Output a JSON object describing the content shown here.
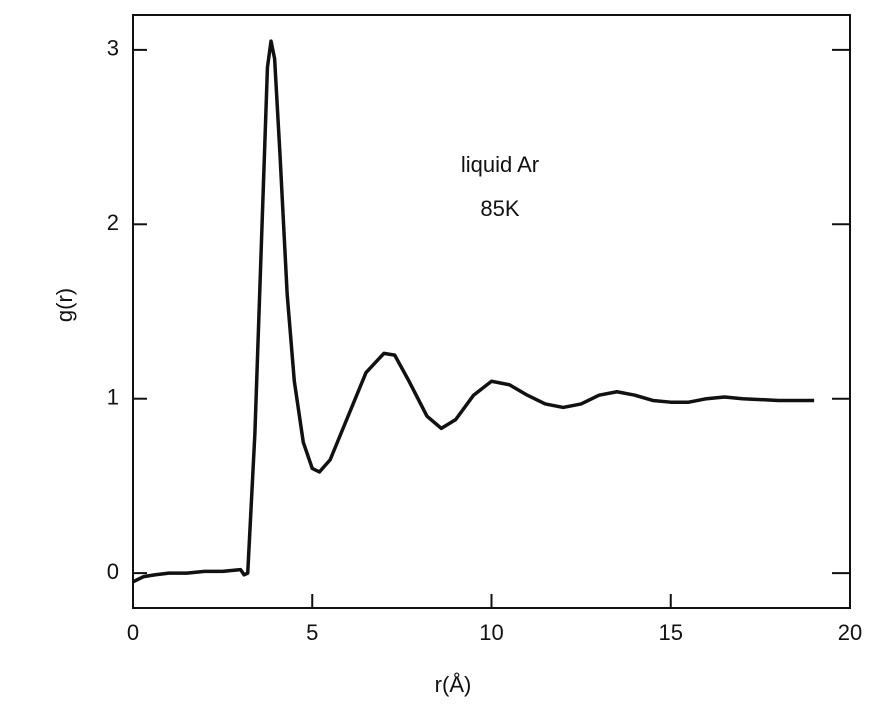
{
  "chart_data": {
    "type": "line",
    "xlabel": "r(Å)",
    "ylabel": "g(r)",
    "annotations": [
      "liquid Ar",
      "85K"
    ],
    "x": [
      0,
      0.3,
      0.6,
      1,
      1.5,
      2,
      2.5,
      3.0,
      3.1,
      3.2,
      3.4,
      3.6,
      3.75,
      3.85,
      3.95,
      4.1,
      4.3,
      4.5,
      4.75,
      5.0,
      5.2,
      5.5,
      6.0,
      6.5,
      7.0,
      7.3,
      7.7,
      8.2,
      8.6,
      9.0,
      9.5,
      10.0,
      10.5,
      11.0,
      11.5,
      12.0,
      12.5,
      13.0,
      13.5,
      14.0,
      14.5,
      15.0,
      15.5,
      16.0,
      16.5,
      17.0,
      18.0,
      19.0
    ],
    "series": [
      {
        "color": "#111111",
        "values": [
          -0.05,
          -0.02,
          -0.01,
          0.0,
          0.0,
          0.01,
          0.01,
          0.02,
          -0.01,
          0.0,
          0.8,
          2.0,
          2.9,
          3.05,
          2.95,
          2.4,
          1.6,
          1.1,
          0.75,
          0.6,
          0.58,
          0.65,
          0.9,
          1.15,
          1.26,
          1.25,
          1.1,
          0.9,
          0.83,
          0.88,
          1.02,
          1.1,
          1.08,
          1.02,
          0.97,
          0.95,
          0.97,
          1.02,
          1.04,
          1.02,
          0.99,
          0.98,
          0.98,
          1.0,
          1.01,
          1.0,
          0.99,
          0.99
        ]
      }
    ],
    "xlim": [
      0,
      20
    ],
    "xticks": [
      0,
      5,
      10,
      15,
      20
    ],
    "ylim": [
      -0.2,
      3.2
    ],
    "yticks": [
      0,
      1,
      2,
      3
    ]
  }
}
